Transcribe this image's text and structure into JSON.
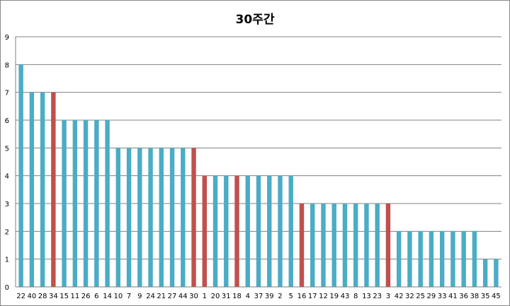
{
  "chart_data": {
    "type": "bar",
    "title": "30주간",
    "xlabel": "",
    "ylabel": "",
    "ylim": [
      0,
      9
    ],
    "yticks": [
      0,
      1,
      2,
      3,
      4,
      5,
      6,
      7,
      8,
      9
    ],
    "grid": true,
    "categories": [
      "22",
      "40",
      "28",
      "34",
      "15",
      "11",
      "26",
      "6",
      "14",
      "10",
      "7",
      "9",
      "24",
      "21",
      "27",
      "44",
      "30",
      "1",
      "20",
      "31",
      "18",
      "4",
      "37",
      "39",
      "2",
      "5",
      "16",
      "17",
      "12",
      "19",
      "43",
      "8",
      "13",
      "23",
      "3",
      "42",
      "32",
      "25",
      "29",
      "33",
      "41",
      "36",
      "38",
      "35",
      "45"
    ],
    "values": [
      8,
      7,
      7,
      7,
      6,
      6,
      6,
      6,
      6,
      5,
      5,
      5,
      5,
      5,
      5,
      5,
      5,
      4,
      4,
      4,
      4,
      4,
      4,
      4,
      4,
      4,
      3,
      3,
      3,
      3,
      3,
      3,
      3,
      3,
      3,
      2,
      2,
      2,
      2,
      2,
      2,
      2,
      2,
      1,
      1
    ],
    "bar_colors": [
      "blue",
      "blue",
      "blue",
      "red",
      "blue",
      "blue",
      "blue",
      "blue",
      "blue",
      "blue",
      "blue",
      "blue",
      "blue",
      "blue",
      "blue",
      "blue",
      "red",
      "red",
      "blue",
      "blue",
      "red",
      "blue",
      "blue",
      "blue",
      "blue",
      "blue",
      "red",
      "blue",
      "blue",
      "blue",
      "blue",
      "blue",
      "blue",
      "blue",
      "red",
      "blue",
      "blue",
      "blue",
      "blue",
      "blue",
      "blue",
      "blue",
      "blue",
      "blue",
      "blue"
    ],
    "colors": {
      "blue": "#4BACC6",
      "red": "#C0504D",
      "grid": "#808080",
      "axis": "#808080"
    }
  }
}
